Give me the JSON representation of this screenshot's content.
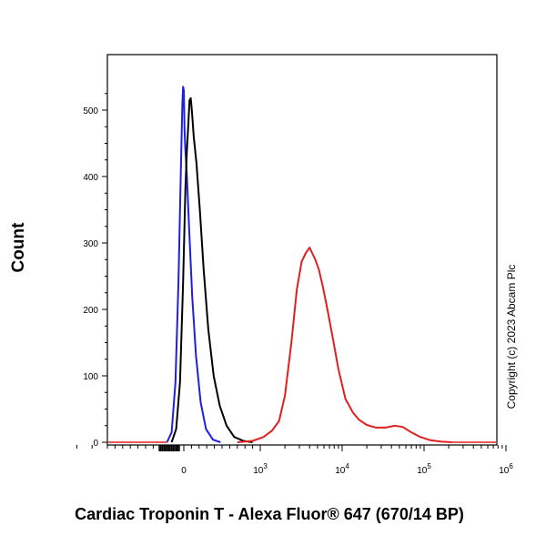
{
  "chart_data": {
    "type": "line",
    "title": "",
    "xlabel": "Cardiac Troponin T - Alexa Fluor® 647 (670/14 BP)",
    "ylabel": "Count",
    "x_scale": "biexponential",
    "ylim": [
      0,
      540
    ],
    "y_ticks": [
      0,
      100,
      200,
      300,
      400,
      500
    ],
    "x_ticks": [
      {
        "value": 0,
        "label": "0",
        "exp": ""
      },
      {
        "value": 1000,
        "label": "10",
        "exp": "3"
      },
      {
        "value": 10000,
        "label": "10",
        "exp": "4"
      },
      {
        "value": 100000,
        "label": "10",
        "exp": "5"
      },
      {
        "value": 1000000,
        "label": "10",
        "exp": "6"
      }
    ],
    "grid": false,
    "legend": "none",
    "series": [
      {
        "color": "#1f1fe0",
        "points": [
          [
            -220,
            0
          ],
          [
            -160,
            15
          ],
          [
            -110,
            90
          ],
          [
            -70,
            240
          ],
          [
            -40,
            400
          ],
          [
            -20,
            505
          ],
          [
            -10,
            535
          ],
          [
            0,
            530
          ],
          [
            10,
            470
          ],
          [
            20,
            440
          ],
          [
            40,
            400
          ],
          [
            70,
            320
          ],
          [
            110,
            220
          ],
          [
            160,
            130
          ],
          [
            220,
            60
          ],
          [
            290,
            20
          ],
          [
            380,
            4
          ],
          [
            480,
            0
          ]
        ]
      },
      {
        "color": "#000000",
        "points": [
          [
            -160,
            0
          ],
          [
            -100,
            20
          ],
          [
            -50,
            90
          ],
          [
            -10,
            240
          ],
          [
            20,
            380
          ],
          [
            40,
            440
          ],
          [
            60,
            480
          ],
          [
            75,
            515
          ],
          [
            90,
            518
          ],
          [
            105,
            500
          ],
          [
            130,
            460
          ],
          [
            165,
            420
          ],
          [
            210,
            350
          ],
          [
            260,
            260
          ],
          [
            320,
            170
          ],
          [
            390,
            100
          ],
          [
            470,
            55
          ],
          [
            560,
            25
          ],
          [
            660,
            8
          ],
          [
            780,
            2
          ],
          [
            900,
            0
          ]
        ]
      },
      {
        "color": "#e02020",
        "points": [
          [
            700,
            0
          ],
          [
            900,
            2
          ],
          [
            1100,
            8
          ],
          [
            1400,
            18
          ],
          [
            1700,
            32
          ],
          [
            2000,
            70
          ],
          [
            2400,
            150
          ],
          [
            2800,
            230
          ],
          [
            3200,
            272
          ],
          [
            3600,
            285
          ],
          [
            4000,
            293
          ],
          [
            4300,
            285
          ],
          [
            4700,
            275
          ],
          [
            5200,
            260
          ],
          [
            5800,
            235
          ],
          [
            6600,
            200
          ],
          [
            7600,
            160
          ],
          [
            9000,
            110
          ],
          [
            11000,
            65
          ],
          [
            13500,
            45
          ],
          [
            16000,
            34
          ],
          [
            20000,
            26
          ],
          [
            26000,
            22
          ],
          [
            34000,
            22
          ],
          [
            44000,
            25
          ],
          [
            55000,
            23
          ],
          [
            70000,
            15
          ],
          [
            90000,
            8
          ],
          [
            120000,
            3
          ],
          [
            160000,
            1
          ],
          [
            220000,
            0
          ]
        ]
      }
    ]
  },
  "watermark": "Copyright (c) 2023 Abcam Plc"
}
